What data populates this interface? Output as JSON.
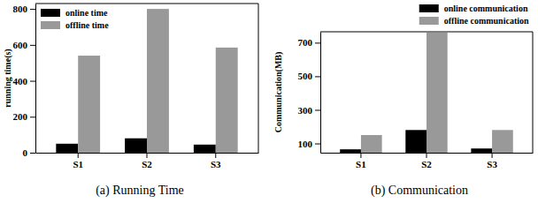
{
  "chart_data": [
    {
      "type": "bar",
      "title": "(a) Running Time",
      "y_label": "running time(s)",
      "categories": [
        "S1",
        "S2",
        "S3"
      ],
      "series": [
        {
          "name": "online time",
          "color": "#000000",
          "values": [
            50,
            80,
            45
          ]
        },
        {
          "name": "offline time",
          "color": "#999999",
          "values": [
            540,
            800,
            585
          ]
        }
      ],
      "ylim": [
        0,
        830
      ],
      "yticks": [
        0,
        200,
        400,
        600,
        800
      ],
      "legend": "upper left"
    },
    {
      "type": "bar",
      "title": "(b) Communication",
      "y_label": "Communication(MB)",
      "categories": [
        "S1",
        "S2",
        "S3"
      ],
      "series": [
        {
          "name": "online communication",
          "color": "#000000",
          "values": [
            65,
            180,
            70
          ]
        },
        {
          "name": "offline communication",
          "color": "#999999",
          "values": [
            150,
            760,
            180
          ]
        }
      ],
      "ylim": [
        45,
        765
      ],
      "yticks": [
        100,
        300,
        500,
        700
      ],
      "legend": "upper right"
    }
  ]
}
